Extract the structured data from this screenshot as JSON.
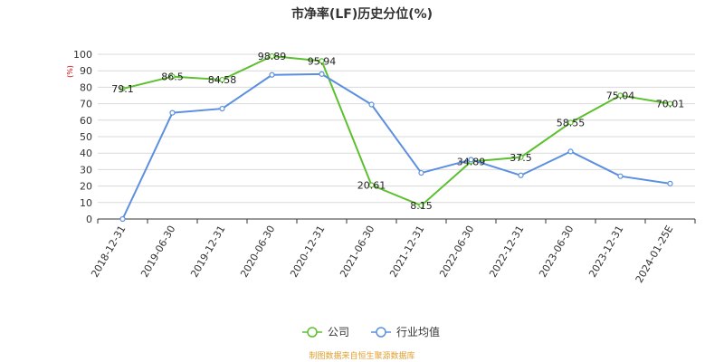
{
  "chart_data": {
    "type": "line",
    "title": "市净率(LF)历史分位(%)",
    "unit_label": "(%)",
    "categories": [
      "2018-12-31",
      "2019-06-30",
      "2019-12-31",
      "2020-06-30",
      "2020-12-31",
      "2021-06-30",
      "2021-12-31",
      "2022-06-30",
      "2022-12-31",
      "2023-06-30",
      "2023-12-31",
      "2024-01-25E"
    ],
    "ylim": [
      0,
      100
    ],
    "yticks": [
      0,
      10,
      20,
      30,
      40,
      50,
      60,
      70,
      80,
      90,
      100
    ],
    "grid": true,
    "legend_position": "bottom",
    "series": [
      {
        "name": "公司",
        "color": "#5cc02e",
        "values": [
          79.1,
          86.5,
          84.58,
          98.89,
          95.94,
          20.61,
          8.15,
          34.89,
          37.5,
          58.55,
          75.04,
          70.01
        ],
        "labels": [
          "79.1",
          "86.5",
          "84.58",
          "98.89",
          "95.94",
          "20.61",
          "8.15",
          "34.89",
          "37.5",
          "58.55",
          "75.04",
          "70.01"
        ]
      },
      {
        "name": "行业均值",
        "color": "#5b8fe0",
        "values": [
          0,
          64.5,
          67,
          87.5,
          88,
          69.5,
          28,
          36,
          26.5,
          41,
          26,
          21.5
        ]
      }
    ],
    "source": "制图数据来自恒生聚源数据库"
  }
}
